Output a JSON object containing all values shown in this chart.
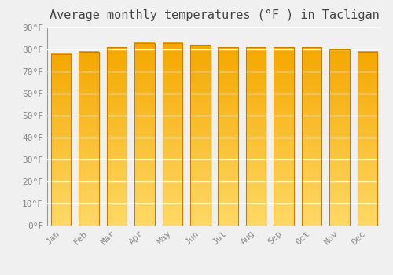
{
  "title": "Average monthly temperatures (°F ) in Tacligan",
  "months": [
    "Jan",
    "Feb",
    "Mar",
    "Apr",
    "May",
    "Jun",
    "Jul",
    "Aug",
    "Sep",
    "Oct",
    "Nov",
    "Dec"
  ],
  "values": [
    78,
    79,
    81,
    83,
    83,
    82,
    81,
    81,
    81,
    81,
    80,
    79
  ],
  "bar_color_top": "#F5A800",
  "bar_color_bottom": "#FFD966",
  "bar_edge_color": "#C88000",
  "background_color": "#f0f0f0",
  "grid_color": "#ffffff",
  "ylim": [
    0,
    90
  ],
  "yticks": [
    0,
    10,
    20,
    30,
    40,
    50,
    60,
    70,
    80,
    90
  ],
  "title_fontsize": 11,
  "tick_fontsize": 8,
  "tick_color": "#888888",
  "title_color": "#444444"
}
